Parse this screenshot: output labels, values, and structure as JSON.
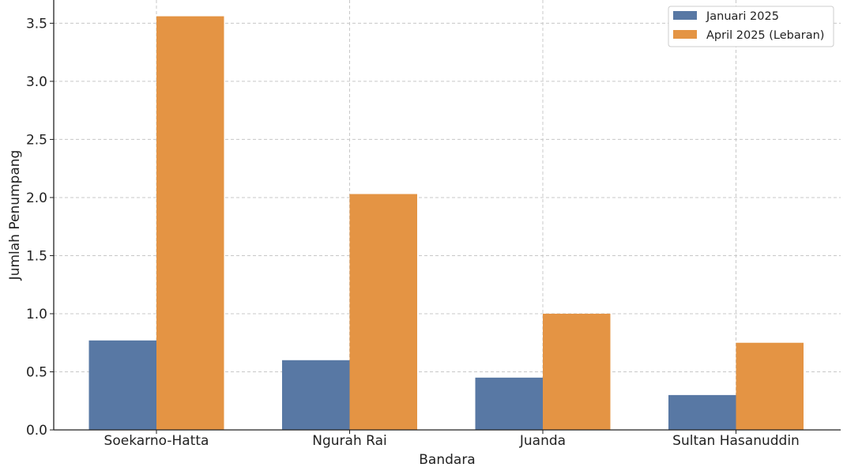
{
  "chart_data": {
    "type": "bar",
    "title": "",
    "xlabel": "Bandara",
    "ylabel": "Jumlah Penumpang",
    "categories": [
      "Soekarno-Hatta",
      "Ngurah Rai",
      "Juanda",
      "Sultan Hasanuddin"
    ],
    "series": [
      {
        "name": "Januari 2025",
        "values": [
          0.77,
          0.6,
          0.45,
          0.3
        ],
        "color": "#5878a4"
      },
      {
        "name": "April 2025 (Lebaran)",
        "values": [
          3.56,
          2.03,
          1.0,
          0.75
        ],
        "color": "#e49444"
      }
    ],
    "ylim": [
      0,
      3.7
    ],
    "yticks": [
      "0.0",
      "0.5",
      "1.0",
      "1.5",
      "2.0",
      "2.5",
      "3.0",
      "3.5"
    ],
    "grid": true,
    "legend_position": "top-right"
  }
}
